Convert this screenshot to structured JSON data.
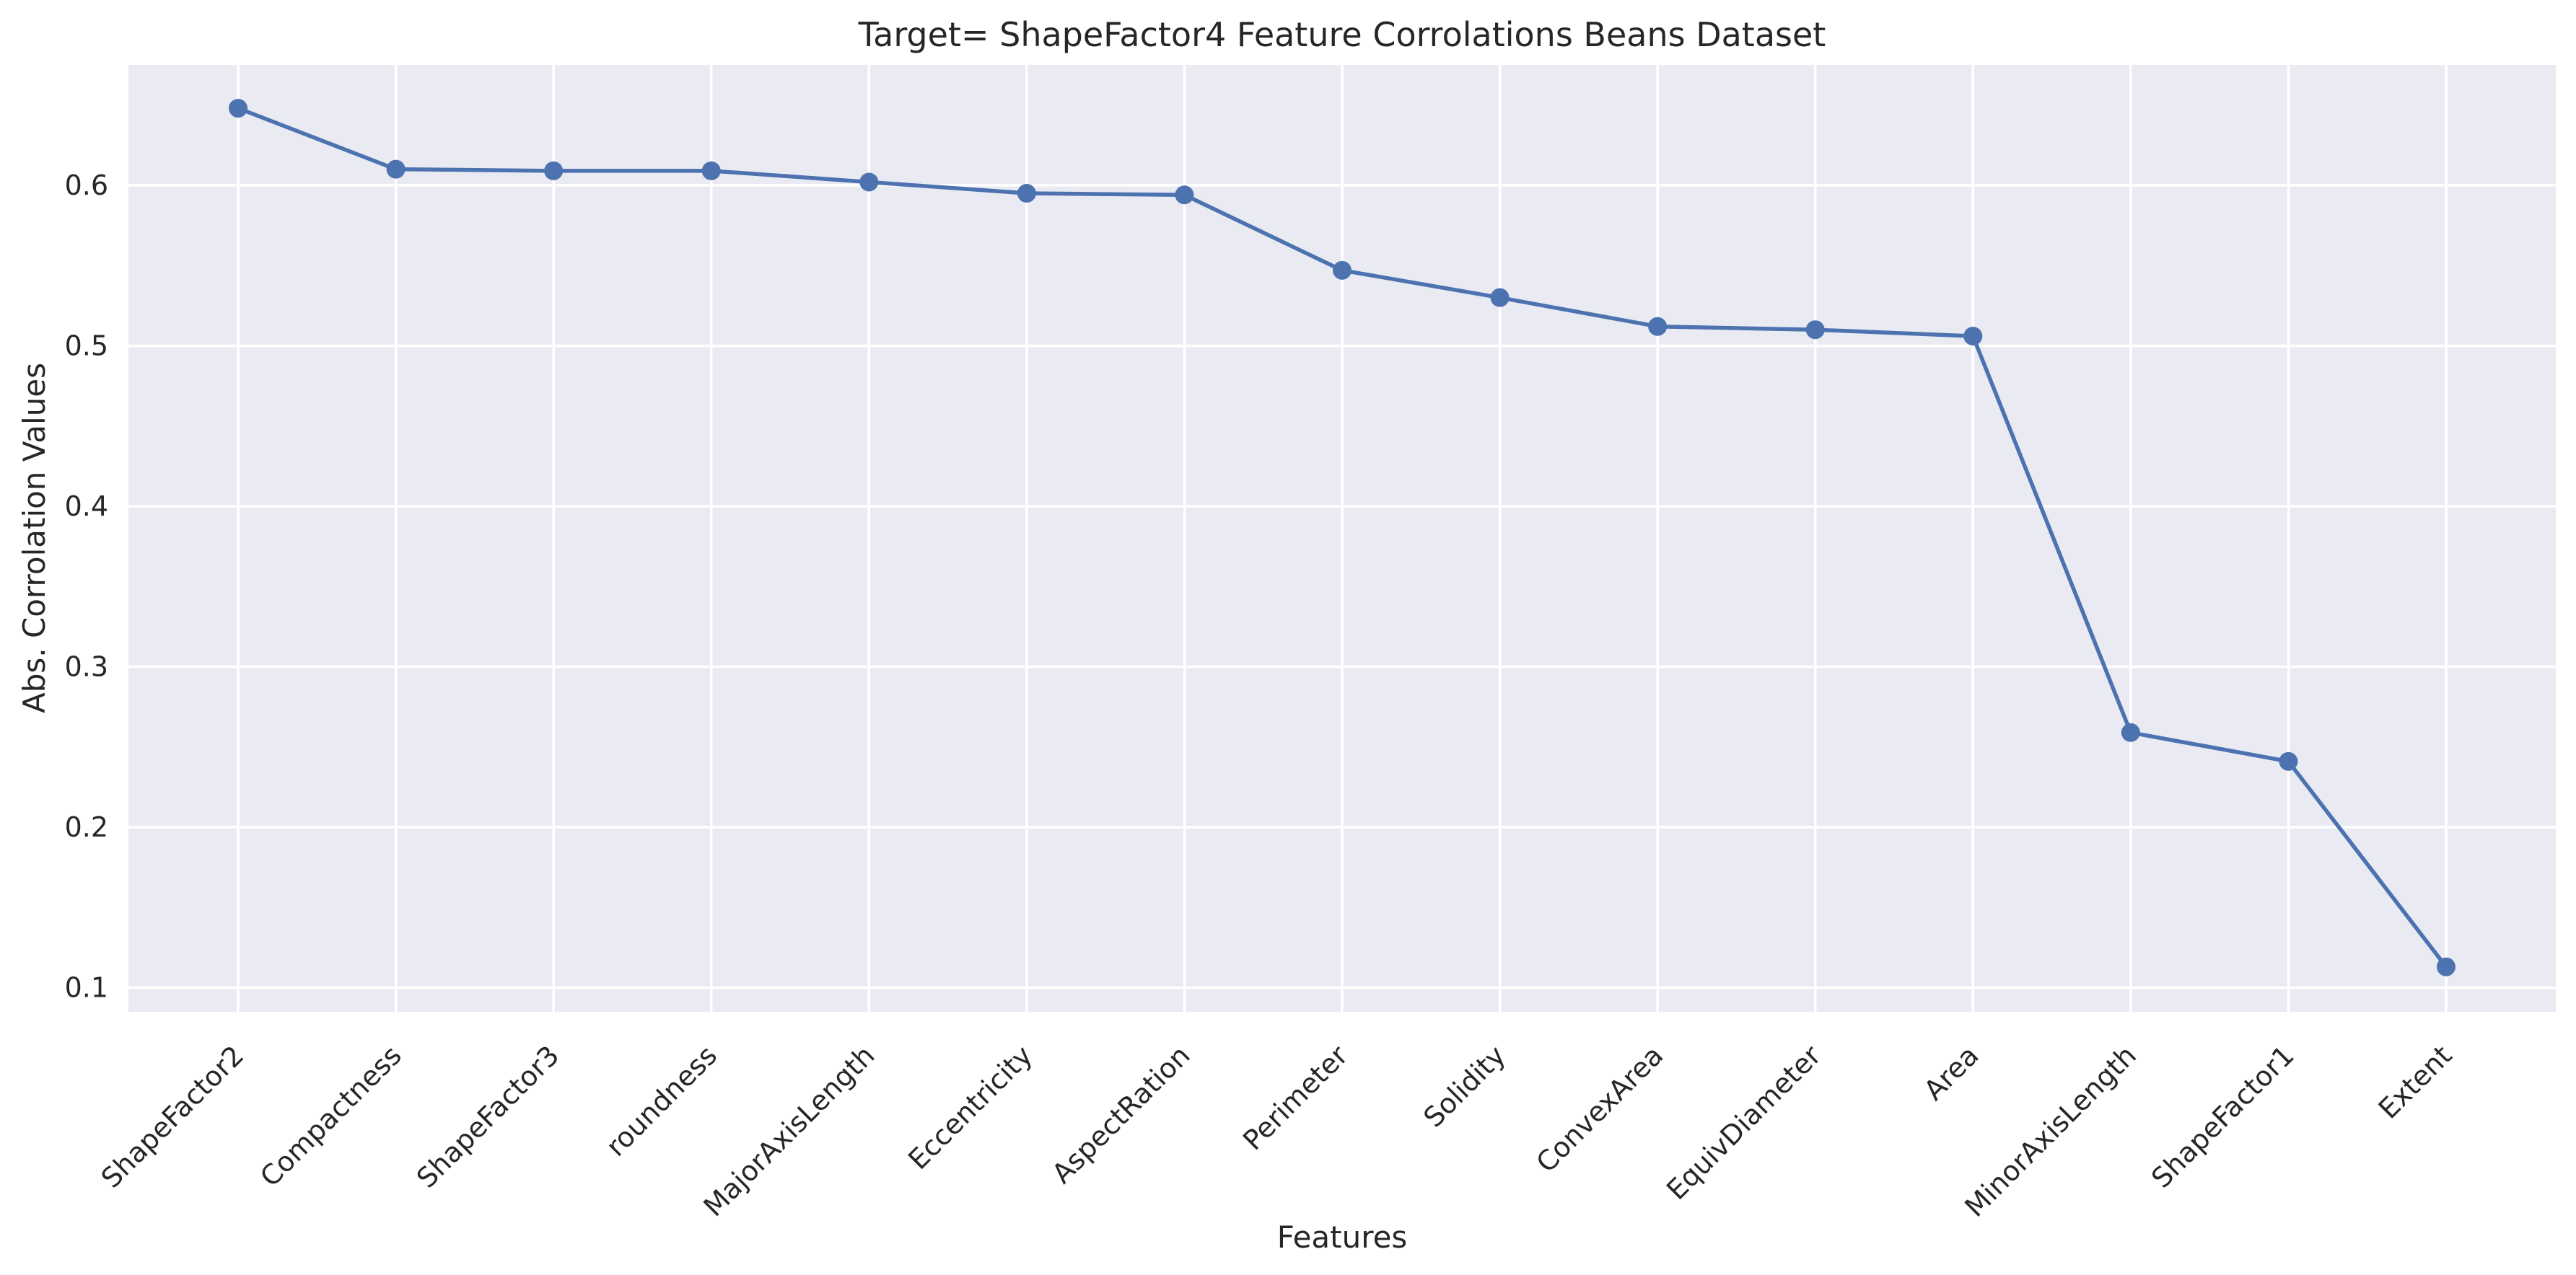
{
  "chart_data": {
    "type": "line",
    "title": "Target= ShapeFactor4 Feature Corrolations Beans Dataset",
    "xlabel": "Features",
    "ylabel": "Abs. Corrolation Values",
    "categories": [
      "ShapeFactor2",
      "Compactness",
      "ShapeFactor3",
      "roundness",
      "MajorAxisLength",
      "Eccentricity",
      "AspectRation",
      "Perimeter",
      "Solidity",
      "ConvexArea",
      "EquivDiameter",
      "Area",
      "MinorAxisLength",
      "ShapeFactor1",
      "Extent"
    ],
    "values": [
      0.648,
      0.61,
      0.609,
      0.609,
      0.602,
      0.595,
      0.594,
      0.547,
      0.53,
      0.512,
      0.51,
      0.506,
      0.259,
      0.241,
      0.113
    ],
    "yticks": [
      0.1,
      0.2,
      0.3,
      0.4,
      0.5,
      0.6
    ],
    "ylim": [
      0.085,
      0.675
    ],
    "grid": true,
    "marker": "circle",
    "colors": {
      "series": "#4c72b0",
      "plot_background": "#eaeaf2",
      "grid": "#ffffff",
      "text": "#262626"
    }
  }
}
